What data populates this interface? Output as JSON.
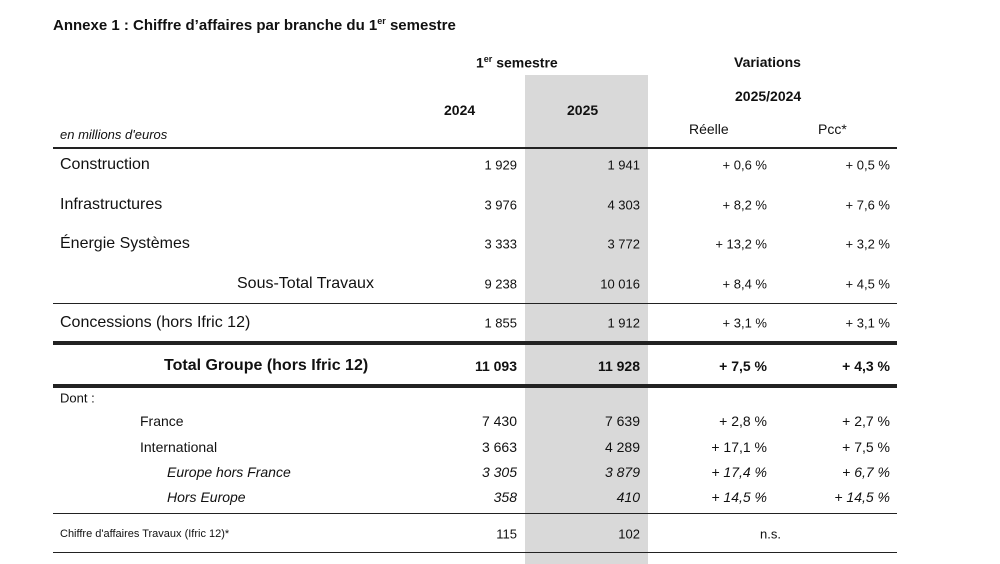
{
  "title": {
    "main": "Annexe 1 : Chiffre d’affaires par branche du 1",
    "sup": "er",
    "end": " semestre"
  },
  "header": {
    "semestre_num": "1",
    "semestre_sup": "er",
    "semestre_label": " semestre",
    "variations": "Variations",
    "period": "2025/2024",
    "year_2024": "2024",
    "year_2025": "2025",
    "reelle": "Réelle",
    "pcc": "Pcc*",
    "unit": "en millions d'euros"
  },
  "colors": {
    "shade": "#d9d9d9",
    "rule": "#222222"
  },
  "rows": [
    {
      "label": "Construction",
      "v2024": "1 929",
      "v2025": "1 941",
      "reelle": "+ 0,6 %",
      "pcc": "+ 0,5 %",
      "style": "branch"
    },
    {
      "label": "Infrastructures",
      "v2024": "3 976",
      "v2025": "4 303",
      "reelle": "+ 8,2 %",
      "pcc": "+ 7,6 %",
      "style": "branch"
    },
    {
      "label": "Énergie Systèmes",
      "v2024": "3 333",
      "v2025": "3 772",
      "reelle": "+ 13,2 %",
      "pcc": "+ 3,2 %",
      "style": "branch"
    },
    {
      "label": "Sous-Total Travaux",
      "v2024": "9 238",
      "v2025": "10 016",
      "reelle": "+ 8,4 %",
      "pcc": "+ 4,5 %",
      "style": "subtotal"
    },
    {
      "label": "Concessions (hors Ifric 12)",
      "v2024": "1 855",
      "v2025": "1 912",
      "reelle": "+ 3,1 %",
      "pcc": "+ 3,1 %",
      "style": "branch"
    },
    {
      "label": "Total Groupe (hors Ifric 12)",
      "v2024": "11 093",
      "v2025": "11 928",
      "reelle": "+ 7,5 %",
      "pcc": "+ 4,3 %",
      "style": "total"
    },
    {
      "label": "Dont :",
      "style": "dont"
    },
    {
      "label": "France",
      "v2024": "7 430",
      "v2025": "7 639",
      "reelle": "+ 2,8 %",
      "pcc": "+ 2,7 %",
      "style": "geo"
    },
    {
      "label": "International",
      "v2024": "3 663",
      "v2025": "4 289",
      "reelle": "+ 17,1 %",
      "pcc": "+ 7,5 %",
      "style": "geo"
    },
    {
      "label": "Europe hors France",
      "v2024": "3 305",
      "v2025": "3 879",
      "reelle": "+ 17,4 %",
      "pcc": "+ 6,7 %",
      "style": "geo-sub"
    },
    {
      "label": "Hors Europe",
      "v2024": "358",
      "v2025": "410",
      "reelle": "+ 14,5 %",
      "pcc": "+ 14,5 %",
      "style": "geo-sub"
    },
    {
      "label": "Chiffre d'affaires Travaux (Ifric 12)*",
      "v2024": "115",
      "v2025": "102",
      "ns": "n.s.",
      "style": "ifric"
    }
  ]
}
